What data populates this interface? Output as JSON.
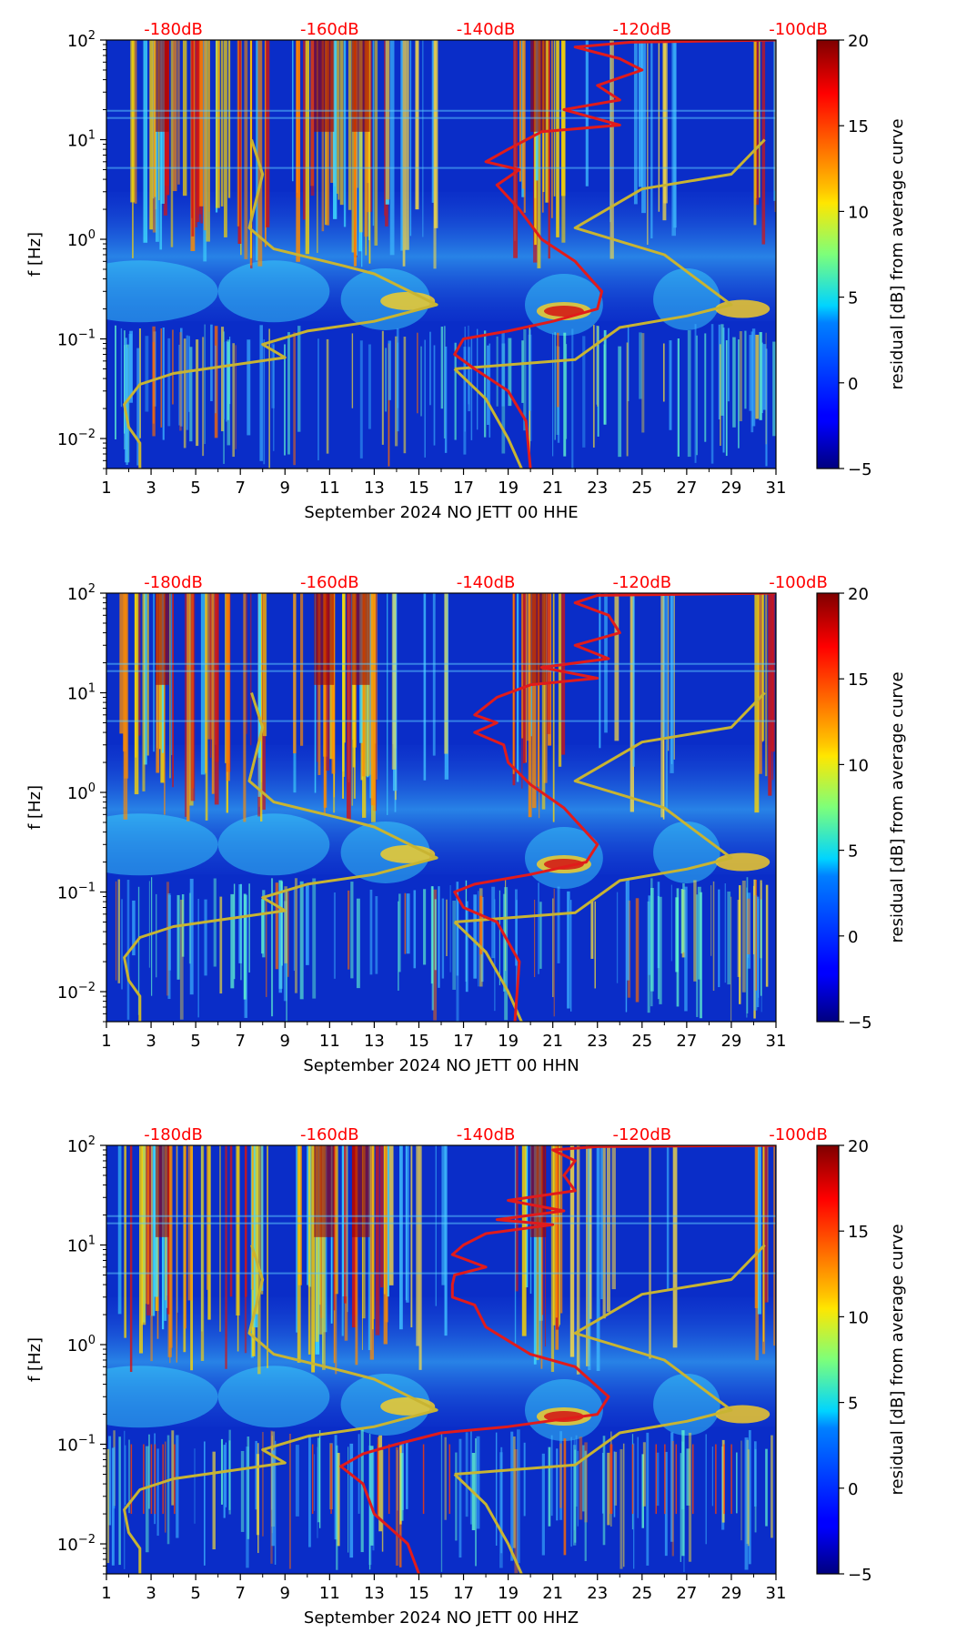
{
  "figure": {
    "colorbar_label": "residual [dB] from average curve",
    "colorbar_ticks": [
      "20",
      "15",
      "10",
      "5",
      "0",
      "−5"
    ],
    "colorbar_range": [
      -5,
      20
    ],
    "db_scale_labels": [
      "-180dB",
      "-160dB",
      "-140dB",
      "-120dB",
      "-100dB"
    ],
    "db_scale_color": "#ff0000",
    "pdf_curve_color": "#e11b1b",
    "noise_model_color": "#c8b432"
  },
  "chart_data": [
    {
      "type": "heatmap",
      "title": "",
      "xlabel": "September 2024 NO JETT 00 HHE",
      "ylabel": "f [Hz]",
      "x_ticks": [
        "1",
        "3",
        "5",
        "7",
        "9",
        "11",
        "13",
        "15",
        "17",
        "19",
        "21",
        "23",
        "25",
        "27",
        "29",
        "31"
      ],
      "xlim": [
        1,
        31
      ],
      "ylim": [
        0.005,
        100
      ],
      "y_scale": "log",
      "y_ticks": [
        {
          "value": 100,
          "base": "10",
          "exp": "2"
        },
        {
          "value": 10,
          "base": "10",
          "exp": "1"
        },
        {
          "value": 1,
          "base": "10",
          "exp": "0"
        },
        {
          "value": 0.1,
          "base": "10",
          "exp": "−1"
        },
        {
          "value": 0.01,
          "base": "10",
          "exp": "−2"
        }
      ],
      "series": [
        {
          "name": "noise-model",
          "points": [
            [
              7.5,
              10
            ],
            [
              8.0,
              4.5
            ],
            [
              7.4,
              1.3
            ],
            [
              8.5,
              0.8
            ],
            [
              11.5,
              0.55
            ],
            [
              13.0,
              0.45
            ],
            [
              15.8,
              0.22
            ],
            [
              13.0,
              0.15
            ],
            [
              10.0,
              0.12
            ],
            [
              8.0,
              0.088
            ],
            [
              9.0,
              0.065
            ],
            [
              4.0,
              0.045
            ],
            [
              2.5,
              0.035
            ],
            [
              1.8,
              0.022
            ],
            [
              2.0,
              0.013
            ],
            [
              2.5,
              0.009
            ],
            [
              2.5,
              0.005
            ]
          ]
        },
        {
          "name": "noise-model",
          "points": [
            [
              16.6,
              0.05
            ],
            [
              18.0,
              0.025
            ],
            [
              19.0,
              0.01
            ],
            [
              19.6,
              0.005
            ]
          ]
        },
        {
          "name": "noise-model",
          "points": [
            [
              30.5,
              10
            ],
            [
              29.0,
              4.5
            ],
            [
              25.0,
              3.2
            ],
            [
              22.0,
              1.3
            ],
            [
              26.0,
              0.7
            ],
            [
              29.0,
              0.22
            ],
            [
              27.0,
              0.17
            ],
            [
              24.0,
              0.13
            ],
            [
              22.0,
              0.062
            ],
            [
              16.6,
              0.05
            ]
          ]
        },
        {
          "name": "median-pdf",
          "points": [
            [
              31.0,
              100
            ],
            [
              24.5,
              95
            ],
            [
              22.0,
              85
            ],
            [
              24.0,
              65
            ],
            [
              25.0,
              50
            ],
            [
              23.0,
              35
            ],
            [
              24.0,
              25
            ],
            [
              21.5,
              20
            ],
            [
              24.0,
              14
            ],
            [
              20.5,
              12
            ],
            [
              19.0,
              8
            ],
            [
              18.0,
              6
            ],
            [
              19.5,
              5
            ],
            [
              18.5,
              3.5
            ],
            [
              19.5,
              2
            ],
            [
              20.5,
              1
            ],
            [
              22.0,
              0.6
            ],
            [
              23.2,
              0.3
            ],
            [
              23.0,
              0.2
            ],
            [
              21.0,
              0.15
            ],
            [
              19.0,
              0.12
            ],
            [
              17.0,
              0.1
            ],
            [
              16.6,
              0.07
            ],
            [
              17.5,
              0.05
            ],
            [
              19.0,
              0.03
            ],
            [
              19.8,
              0.015
            ],
            [
              20.0,
              0.005
            ]
          ]
        }
      ]
    },
    {
      "type": "heatmap",
      "title": "",
      "xlabel": "September 2024 NO JETT 00 HHN",
      "ylabel": "f [Hz]",
      "x_ticks": [
        "1",
        "3",
        "5",
        "7",
        "9",
        "11",
        "13",
        "15",
        "17",
        "19",
        "21",
        "23",
        "25",
        "27",
        "29",
        "31"
      ],
      "xlim": [
        1,
        31
      ],
      "ylim": [
        0.005,
        100
      ],
      "y_scale": "log",
      "y_ticks": [
        {
          "value": 100,
          "base": "10",
          "exp": "2"
        },
        {
          "value": 10,
          "base": "10",
          "exp": "1"
        },
        {
          "value": 1,
          "base": "10",
          "exp": "0"
        },
        {
          "value": 0.1,
          "base": "10",
          "exp": "−1"
        },
        {
          "value": 0.01,
          "base": "10",
          "exp": "−2"
        }
      ],
      "series": [
        {
          "name": "noise-model",
          "points": [
            [
              7.5,
              10
            ],
            [
              8.0,
              4.5
            ],
            [
              7.4,
              1.3
            ],
            [
              8.5,
              0.8
            ],
            [
              11.5,
              0.55
            ],
            [
              13.0,
              0.45
            ],
            [
              15.8,
              0.22
            ],
            [
              13.0,
              0.15
            ],
            [
              10.0,
              0.12
            ],
            [
              8.0,
              0.088
            ],
            [
              9.0,
              0.065
            ],
            [
              4.0,
              0.045
            ],
            [
              2.5,
              0.035
            ],
            [
              1.8,
              0.022
            ],
            [
              2.0,
              0.013
            ],
            [
              2.5,
              0.009
            ],
            [
              2.5,
              0.005
            ]
          ]
        },
        {
          "name": "noise-model",
          "points": [
            [
              16.6,
              0.05
            ],
            [
              18.0,
              0.025
            ],
            [
              19.0,
              0.01
            ],
            [
              19.6,
              0.005
            ]
          ]
        },
        {
          "name": "noise-model",
          "points": [
            [
              30.5,
              10
            ],
            [
              29.0,
              4.5
            ],
            [
              25.0,
              3.2
            ],
            [
              22.0,
              1.3
            ],
            [
              26.0,
              0.7
            ],
            [
              29.0,
              0.22
            ],
            [
              27.0,
              0.17
            ],
            [
              24.0,
              0.13
            ],
            [
              22.0,
              0.062
            ],
            [
              16.6,
              0.05
            ]
          ]
        },
        {
          "name": "median-pdf",
          "points": [
            [
              31.0,
              100
            ],
            [
              23.0,
              95
            ],
            [
              22.0,
              80
            ],
            [
              23.5,
              60
            ],
            [
              24.0,
              40
            ],
            [
              22.0,
              30
            ],
            [
              23.5,
              22
            ],
            [
              20.5,
              18
            ],
            [
              23.0,
              14
            ],
            [
              20.0,
              12
            ],
            [
              18.5,
              9
            ],
            [
              17.5,
              6
            ],
            [
              18.5,
              5
            ],
            [
              17.5,
              4
            ],
            [
              18.8,
              3
            ],
            [
              19.0,
              2
            ],
            [
              20.0,
              1.2
            ],
            [
              21.5,
              0.7
            ],
            [
              23.0,
              0.3
            ],
            [
              22.5,
              0.2
            ],
            [
              20.0,
              0.15
            ],
            [
              17.5,
              0.12
            ],
            [
              16.6,
              0.1
            ],
            [
              17.0,
              0.07
            ],
            [
              18.5,
              0.05
            ],
            [
              19.5,
              0.02
            ],
            [
              19.3,
              0.005
            ]
          ]
        }
      ]
    },
    {
      "type": "heatmap",
      "title": "",
      "xlabel": "September 2024 NO JETT 00 HHZ",
      "ylabel": "f [Hz]",
      "x_ticks": [
        "1",
        "3",
        "5",
        "7",
        "9",
        "11",
        "13",
        "15",
        "17",
        "19",
        "21",
        "23",
        "25",
        "27",
        "29",
        "31"
      ],
      "xlim": [
        1,
        31
      ],
      "ylim": [
        0.005,
        100
      ],
      "y_scale": "log",
      "y_ticks": [
        {
          "value": 100,
          "base": "10",
          "exp": "2"
        },
        {
          "value": 10,
          "base": "10",
          "exp": "1"
        },
        {
          "value": 1,
          "base": "10",
          "exp": "0"
        },
        {
          "value": 0.1,
          "base": "10",
          "exp": "−1"
        },
        {
          "value": 0.01,
          "base": "10",
          "exp": "−2"
        }
      ],
      "series": [
        {
          "name": "noise-model",
          "points": [
            [
              7.5,
              10
            ],
            [
              8.0,
              4.5
            ],
            [
              7.4,
              1.3
            ],
            [
              8.5,
              0.8
            ],
            [
              11.5,
              0.55
            ],
            [
              13.0,
              0.45
            ],
            [
              15.8,
              0.22
            ],
            [
              13.0,
              0.15
            ],
            [
              10.0,
              0.12
            ],
            [
              8.0,
              0.088
            ],
            [
              9.0,
              0.065
            ],
            [
              4.0,
              0.045
            ],
            [
              2.5,
              0.035
            ],
            [
              1.8,
              0.022
            ],
            [
              2.0,
              0.013
            ],
            [
              2.5,
              0.009
            ],
            [
              2.5,
              0.005
            ]
          ]
        },
        {
          "name": "noise-model",
          "points": [
            [
              16.6,
              0.05
            ],
            [
              18.0,
              0.025
            ],
            [
              19.0,
              0.01
            ],
            [
              19.6,
              0.005
            ]
          ]
        },
        {
          "name": "noise-model",
          "points": [
            [
              30.5,
              10
            ],
            [
              29.0,
              4.5
            ],
            [
              25.0,
              3.2
            ],
            [
              22.0,
              1.3
            ],
            [
              26.0,
              0.7
            ],
            [
              29.0,
              0.22
            ],
            [
              27.0,
              0.17
            ],
            [
              24.0,
              0.13
            ],
            [
              22.0,
              0.062
            ],
            [
              16.6,
              0.05
            ]
          ]
        },
        {
          "name": "median-pdf",
          "points": [
            [
              31.0,
              100
            ],
            [
              23.0,
              97
            ],
            [
              21.0,
              90
            ],
            [
              22.0,
              70
            ],
            [
              21.5,
              50
            ],
            [
              22.0,
              35
            ],
            [
              19.0,
              28
            ],
            [
              21.5,
              22
            ],
            [
              18.5,
              18
            ],
            [
              21.0,
              16
            ],
            [
              18.0,
              13
            ],
            [
              17.0,
              10
            ],
            [
              16.5,
              8
            ],
            [
              18.0,
              6
            ],
            [
              16.6,
              5
            ],
            [
              16.5,
              4
            ],
            [
              16.5,
              3
            ],
            [
              17.5,
              2.5
            ],
            [
              18.0,
              1.5
            ],
            [
              20.0,
              0.8
            ],
            [
              22.0,
              0.6
            ],
            [
              23.5,
              0.3
            ],
            [
              23.0,
              0.2
            ],
            [
              19.0,
              0.15
            ],
            [
              16.0,
              0.13
            ],
            [
              14.0,
              0.1
            ],
            [
              12.5,
              0.08
            ],
            [
              11.5,
              0.06
            ],
            [
              12.5,
              0.04
            ],
            [
              13.0,
              0.02
            ],
            [
              14.5,
              0.01
            ],
            [
              15.0,
              0.005
            ]
          ]
        }
      ]
    }
  ]
}
